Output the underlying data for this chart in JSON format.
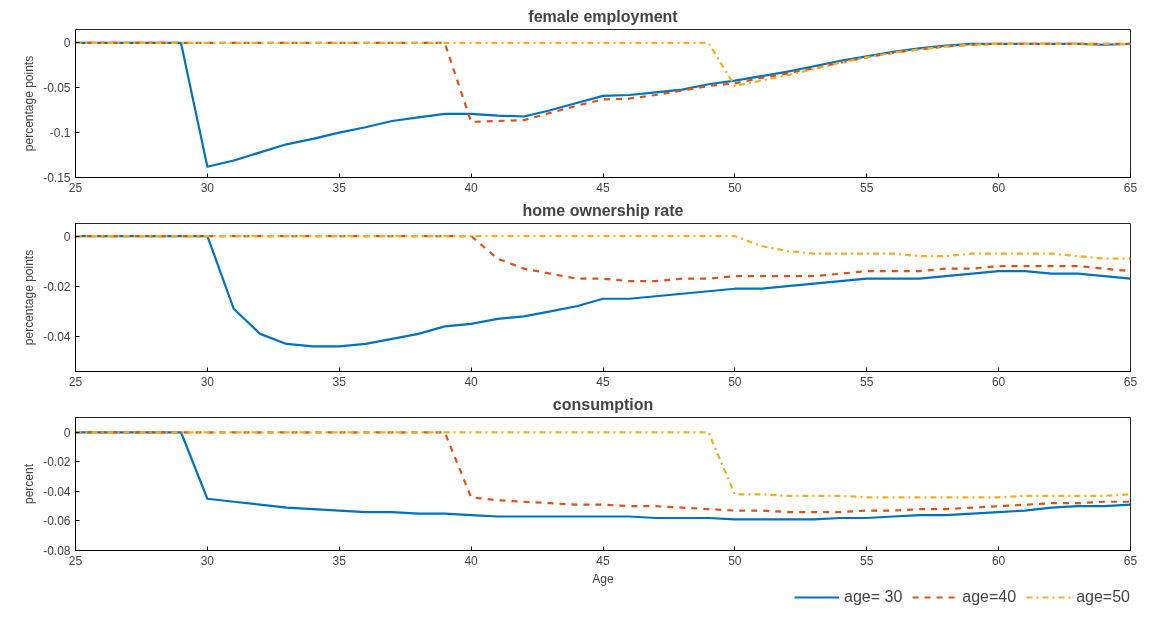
{
  "chart_data": [
    {
      "type": "line",
      "title": "female employment",
      "ylabel": "percentage points",
      "x": [
        25,
        26,
        27,
        28,
        29,
        30,
        31,
        32,
        33,
        34,
        35,
        36,
        37,
        38,
        39,
        40,
        41,
        42,
        43,
        44,
        45,
        46,
        47,
        48,
        49,
        50,
        51,
        52,
        53,
        54,
        55,
        56,
        57,
        58,
        59,
        60,
        61,
        62,
        63,
        64,
        65
      ],
      "xlim": [
        25,
        65
      ],
      "xticks": [
        25,
        30,
        35,
        40,
        45,
        50,
        55,
        60,
        65
      ],
      "ylim": [
        -0.15,
        0.015
      ],
      "yticks": [
        -0.15,
        -0.1,
        -0.05,
        0
      ],
      "grid": false,
      "legend": false,
      "series": [
        {
          "color": "#0072bd",
          "line_style": "solid",
          "values": [
            0,
            0,
            0,
            0,
            0,
            -0.138,
            -0.131,
            -0.122,
            -0.113,
            -0.107,
            -0.1,
            -0.094,
            -0.087,
            -0.083,
            -0.079,
            -0.079,
            -0.081,
            -0.082,
            -0.075,
            -0.067,
            -0.059,
            -0.058,
            -0.055,
            -0.052,
            -0.046,
            -0.042,
            -0.037,
            -0.032,
            -0.026,
            -0.02,
            -0.015,
            -0.01,
            -0.006,
            -0.003,
            -0.001,
            -0.001,
            -0.001,
            -0.001,
            -0.001,
            -0.002,
            -0.001
          ]
        },
        {
          "color": "#d95319",
          "line_style": "dashed",
          "values": [
            0,
            0,
            0,
            0,
            0,
            0,
            0,
            0,
            0,
            0,
            0,
            0,
            0,
            0,
            0,
            -0.088,
            -0.087,
            -0.086,
            -0.078,
            -0.07,
            -0.063,
            -0.062,
            -0.058,
            -0.053,
            -0.048,
            -0.045,
            -0.039,
            -0.034,
            -0.028,
            -0.022,
            -0.016,
            -0.011,
            -0.007,
            -0.004,
            -0.002,
            -0.001,
            -0.001,
            -0.001,
            -0.001,
            -0.001,
            -0.001
          ]
        },
        {
          "color": "#edb120",
          "line_style": "dashdot",
          "values": [
            0,
            0,
            0,
            0,
            0,
            0,
            0,
            0,
            0,
            0,
            0,
            0,
            0,
            0,
            0,
            0,
            0,
            0,
            0,
            0,
            0,
            0,
            0,
            0,
            0,
            -0.048,
            -0.042,
            -0.036,
            -0.029,
            -0.022,
            -0.016,
            -0.011,
            -0.007,
            -0.004,
            -0.002,
            -0.001,
            -0.001,
            -0.001,
            -0.001,
            -0.001,
            -0.001
          ]
        }
      ]
    },
    {
      "type": "line",
      "title": "home ownership rate",
      "ylabel": "percentage points",
      "x": [
        25,
        26,
        27,
        28,
        29,
        30,
        31,
        32,
        33,
        34,
        35,
        36,
        37,
        38,
        39,
        40,
        41,
        42,
        43,
        44,
        45,
        46,
        47,
        48,
        49,
        50,
        51,
        52,
        53,
        54,
        55,
        56,
        57,
        58,
        59,
        60,
        61,
        62,
        63,
        64,
        65
      ],
      "xlim": [
        25,
        65
      ],
      "xticks": [
        25,
        30,
        35,
        40,
        45,
        50,
        55,
        60,
        65
      ],
      "ylim": [
        -0.054,
        0.005
      ],
      "yticks": [
        -0.04,
        -0.02,
        0
      ],
      "grid": false,
      "legend": false,
      "series": [
        {
          "color": "#0072bd",
          "line_style": "solid",
          "values": [
            0,
            0,
            0,
            0,
            0,
            0,
            -0.029,
            -0.039,
            -0.043,
            -0.044,
            -0.044,
            -0.043,
            -0.041,
            -0.039,
            -0.036,
            -0.035,
            -0.033,
            -0.032,
            -0.03,
            -0.028,
            -0.025,
            -0.025,
            -0.024,
            -0.023,
            -0.022,
            -0.021,
            -0.021,
            -0.02,
            -0.019,
            -0.018,
            -0.017,
            -0.017,
            -0.017,
            -0.016,
            -0.015,
            -0.014,
            -0.014,
            -0.015,
            -0.015,
            -0.016,
            -0.017
          ]
        },
        {
          "color": "#d95319",
          "line_style": "dashed",
          "values": [
            0,
            0,
            0,
            0,
            0,
            0,
            0,
            0,
            0,
            0,
            0,
            0,
            0,
            0,
            0,
            0,
            -0.009,
            -0.013,
            -0.015,
            -0.017,
            -0.017,
            -0.018,
            -0.018,
            -0.017,
            -0.017,
            -0.016,
            -0.016,
            -0.016,
            -0.016,
            -0.015,
            -0.014,
            -0.014,
            -0.014,
            -0.013,
            -0.013,
            -0.012,
            -0.012,
            -0.012,
            -0.012,
            -0.013,
            -0.014
          ]
        },
        {
          "color": "#edb120",
          "line_style": "dashdot",
          "values": [
            0,
            0,
            0,
            0,
            0,
            0,
            0,
            0,
            0,
            0,
            0,
            0,
            0,
            0,
            0,
            0,
            0,
            0,
            0,
            0,
            0,
            0,
            0,
            0,
            0,
            0,
            -0.004,
            -0.006,
            -0.007,
            -0.007,
            -0.007,
            -0.007,
            -0.008,
            -0.008,
            -0.007,
            -0.007,
            -0.007,
            -0.007,
            -0.008,
            -0.009,
            -0.009
          ]
        }
      ]
    },
    {
      "type": "line",
      "title": "consumption",
      "ylabel": "percent",
      "xlabel": "Age",
      "x": [
        25,
        26,
        27,
        28,
        29,
        30,
        31,
        32,
        33,
        34,
        35,
        36,
        37,
        38,
        39,
        40,
        41,
        42,
        43,
        44,
        45,
        46,
        47,
        48,
        49,
        50,
        51,
        52,
        53,
        54,
        55,
        56,
        57,
        58,
        59,
        60,
        61,
        62,
        63,
        64,
        65
      ],
      "xlim": [
        25,
        65
      ],
      "xticks": [
        25,
        30,
        35,
        40,
        45,
        50,
        55,
        60,
        65
      ],
      "ylim": [
        -0.08,
        0.01
      ],
      "yticks": [
        -0.08,
        -0.06,
        -0.04,
        -0.02,
        0
      ],
      "grid": false,
      "legend": "bottom right",
      "series": [
        {
          "name": "age= 30",
          "color": "#0072bd",
          "line_style": "solid",
          "values": [
            0,
            0,
            0,
            0,
            0,
            -0.045,
            -0.047,
            -0.049,
            -0.051,
            -0.052,
            -0.053,
            -0.054,
            -0.054,
            -0.055,
            -0.055,
            -0.056,
            -0.057,
            -0.057,
            -0.057,
            -0.057,
            -0.057,
            -0.057,
            -0.058,
            -0.058,
            -0.058,
            -0.059,
            -0.059,
            -0.059,
            -0.059,
            -0.058,
            -0.058,
            -0.057,
            -0.056,
            -0.056,
            -0.055,
            -0.054,
            -0.053,
            -0.051,
            -0.05,
            -0.05,
            -0.049
          ]
        },
        {
          "name": "age=40",
          "color": "#d95319",
          "line_style": "dashed",
          "values": [
            0,
            0,
            0,
            0,
            0,
            0,
            0,
            0,
            0,
            0,
            0,
            0,
            0,
            0,
            0,
            -0.044,
            -0.046,
            -0.047,
            -0.048,
            -0.049,
            -0.049,
            -0.05,
            -0.05,
            -0.051,
            -0.052,
            -0.053,
            -0.053,
            -0.054,
            -0.054,
            -0.054,
            -0.053,
            -0.053,
            -0.052,
            -0.052,
            -0.051,
            -0.05,
            -0.049,
            -0.048,
            -0.048,
            -0.047,
            -0.047
          ]
        },
        {
          "name": "age=50",
          "color": "#edb120",
          "line_style": "dashdot",
          "values": [
            0,
            0,
            0,
            0,
            0,
            0,
            0,
            0,
            0,
            0,
            0,
            0,
            0,
            0,
            0,
            0,
            0,
            0,
            0,
            0,
            0,
            0,
            0,
            0,
            0,
            -0.042,
            -0.042,
            -0.043,
            -0.043,
            -0.043,
            -0.044,
            -0.044,
            -0.044,
            -0.044,
            -0.044,
            -0.044,
            -0.043,
            -0.043,
            -0.043,
            -0.043,
            -0.042
          ]
        }
      ]
    }
  ]
}
